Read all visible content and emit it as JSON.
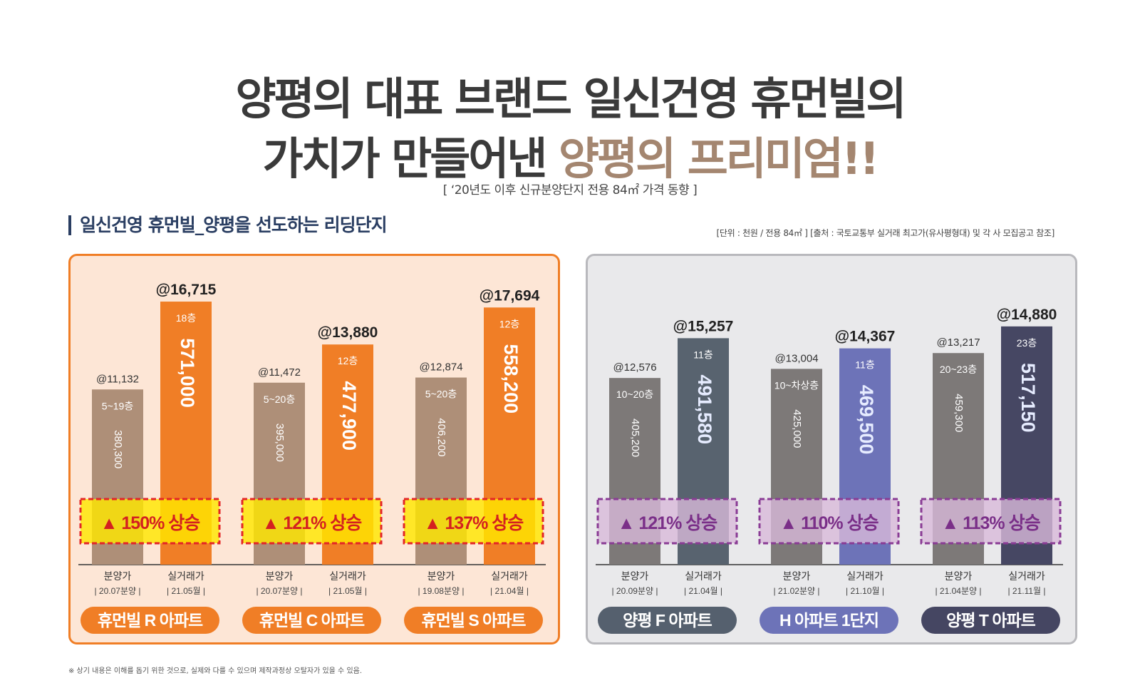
{
  "title": {
    "line1": "양평의 대표 브랜드 일신건영 휴먼빌의",
    "line2_prefix": "가치가 만들어낸 ",
    "line2_highlight": "양평의 프리미엄!!"
  },
  "subtitle": "[ ‘20년도 이후 신규분양단지 전용 84㎡ 가격 동향 ]",
  "section_title": "일신건영 휴먼빌_양평을 선도하는 리딩단지",
  "unit_note": "[단위 : 천원 / 전용 84㎡ ]  [출처 : 국토교통부 실거래 최고가(유사평형대) 및 각 사 모집공고 참조]",
  "footnote": "※ 상기 내용은 이해를 돕기 위한 것으로, 실제와 다를 수 있으며 제작과정상 오탈자가 있을 수 있음.",
  "colors": {
    "left_panel_bg": "#fde6d6",
    "left_panel_border": "#f07e26",
    "right_panel_bg": "#e9e9eb",
    "right_panel_border": "#b9b9bd",
    "sale_bar_left": "#ae8f78",
    "trade_bar_left": "#f07e26",
    "sale_bar_right": "#7d7978",
    "rise_left_box": "#ffe600",
    "rise_left_border": "#e32626",
    "rise_left_text": "#d42020",
    "rise_right_box": "#d8b9d9",
    "rise_right_border": "#8a3c95",
    "rise_right_text": "#7a2f88"
  },
  "chart_data": {
    "type": "bar",
    "ylabel": "",
    "xlabel": "",
    "unit": "천원 / 전용 84㎡",
    "complexes": [
      {
        "name": "휴먼빌 R 아파트",
        "group": "left",
        "label_color": "#f07e26",
        "rise": "150% 상승",
        "sale": {
          "category": "분양가",
          "date": "| 20.07분양 |",
          "value": 380300,
          "value_label": "380,300",
          "per_pyeong": "@11,132",
          "floors": "5~19층"
        },
        "trade": {
          "category": "실거래가",
          "date": "| 21.05월 |",
          "value": 571000,
          "value_label": "571,000",
          "per_pyeong": "@16,715",
          "floors": "18층",
          "color": "#f07e26"
        }
      },
      {
        "name": "휴먼빌 C 아파트",
        "group": "left",
        "label_color": "#f07e26",
        "rise": "121% 상승",
        "sale": {
          "category": "분양가",
          "date": "| 20.07분양 |",
          "value": 395000,
          "value_label": "395,000",
          "per_pyeong": "@11,472",
          "floors": "5~20층"
        },
        "trade": {
          "category": "실거래가",
          "date": "| 21.05월 |",
          "value": 477900,
          "value_label": "477,900",
          "per_pyeong": "@13,880",
          "floors": "12층",
          "color": "#f07e26"
        }
      },
      {
        "name": "휴먼빌 S 아파트",
        "group": "left",
        "label_color": "#f07e26",
        "rise": "137% 상승",
        "sale": {
          "category": "분양가",
          "date": "| 19.08분양 |",
          "value": 406200,
          "value_label": "406,200",
          "per_pyeong": "@12,874",
          "floors": "5~20층"
        },
        "trade": {
          "category": "실거래가",
          "date": "| 21.04월 |",
          "value": 558200,
          "value_label": "558,200",
          "per_pyeong": "@17,694",
          "floors": "12층",
          "color": "#f07e26"
        }
      },
      {
        "name": "양평 F 아파트",
        "group": "right",
        "label_color": "#55606e",
        "rise": "121% 상승",
        "sale": {
          "category": "분양가",
          "date": "| 20.09분양 |",
          "value": 405200,
          "value_label": "405,200",
          "per_pyeong": "@12,576",
          "floors": "10~20층"
        },
        "trade": {
          "category": "실거래가",
          "date": "| 21.04월 |",
          "value": 491580,
          "value_label": "491,580",
          "per_pyeong": "@15,257",
          "floors": "11층",
          "color": "#58636f"
        }
      },
      {
        "name": "H 아파트 1단지",
        "group": "right",
        "label_color": "#6d73b8",
        "rise": "110% 상승",
        "sale": {
          "category": "분양가",
          "date": "| 21.02분양 |",
          "value": 425000,
          "value_label": "425,000",
          "per_pyeong": "@13,004",
          "floors": "10~차상층"
        },
        "trade": {
          "category": "실거래가",
          "date": "| 21.10월 |",
          "value": 469500,
          "value_label": "469,500",
          "per_pyeong": "@14,367",
          "floors": "11층",
          "color": "#6d73b8"
        }
      },
      {
        "name": "양평 T 아파트",
        "group": "right",
        "label_color": "#454662",
        "rise": "113% 상승",
        "sale": {
          "category": "분양가",
          "date": "| 21.04분양 |",
          "value": 459300,
          "value_label": "459,300",
          "per_pyeong": "@13,217",
          "floors": "20~23층"
        },
        "trade": {
          "category": "실거래가",
          "date": "| 21.11월 |",
          "value": 517150,
          "value_label": "517,150",
          "per_pyeong": "@14,880",
          "floors": "23층",
          "color": "#464763"
        }
      }
    ]
  }
}
